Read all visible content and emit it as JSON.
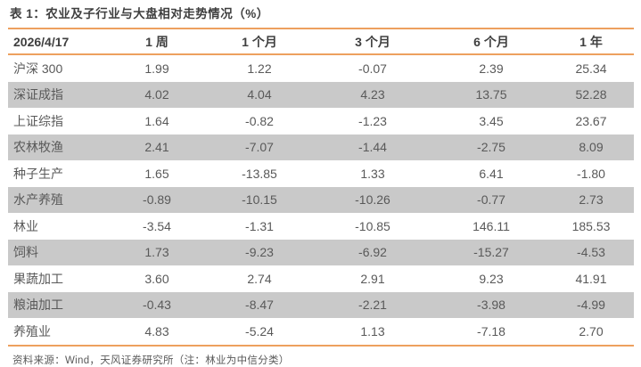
{
  "page": {
    "source_note": "资料来源：Wind，天风证券研究所（注：林业为中信分类）"
  },
  "colors": {
    "accent_orange": "#eda05e",
    "stripe_gray": "#c9c9c9",
    "text_gray": "#595959",
    "title_color": "#3f3f3f"
  },
  "chart_data": {
    "type": "table",
    "title": "表 1：农业及子行业与大盘相对走势情况（%）",
    "columns": [
      "2026/4/17",
      "1 周",
      "1 个月",
      "3 个月",
      "6 个月",
      "1 年"
    ],
    "rows": [
      {
        "label": "沪深 300",
        "values": [
          "1.99",
          "1.22",
          "-0.07",
          "2.39",
          "25.34"
        ]
      },
      {
        "label": "深证成指",
        "values": [
          "4.02",
          "4.04",
          "4.23",
          "13.75",
          "52.28"
        ]
      },
      {
        "label": "上证综指",
        "values": [
          "1.64",
          "-0.82",
          "-1.23",
          "3.45",
          "23.67"
        ]
      },
      {
        "label": "农林牧渔",
        "values": [
          "2.41",
          "-7.07",
          "-1.44",
          "-2.75",
          "8.09"
        ]
      },
      {
        "label": "种子生产",
        "values": [
          "1.65",
          "-13.85",
          "1.33",
          "6.41",
          "-1.80"
        ]
      },
      {
        "label": "水产养殖",
        "values": [
          "-0.89",
          "-10.15",
          "-10.26",
          "-0.77",
          "2.73"
        ]
      },
      {
        "label": "林业",
        "values": [
          "-3.54",
          "-1.31",
          "-10.85",
          "146.11",
          "185.53"
        ]
      },
      {
        "label": "饲料",
        "values": [
          "1.73",
          "-9.23",
          "-6.92",
          "-15.27",
          "-4.53"
        ]
      },
      {
        "label": "果蔬加工",
        "values": [
          "3.60",
          "2.74",
          "2.91",
          "9.23",
          "41.91"
        ]
      },
      {
        "label": "粮油加工",
        "values": [
          "-0.43",
          "-8.47",
          "-2.21",
          "-3.98",
          "-4.99"
        ]
      },
      {
        "label": "养殖业",
        "values": [
          "4.83",
          "-5.24",
          "1.13",
          "-7.18",
          "2.70"
        ]
      }
    ]
  }
}
